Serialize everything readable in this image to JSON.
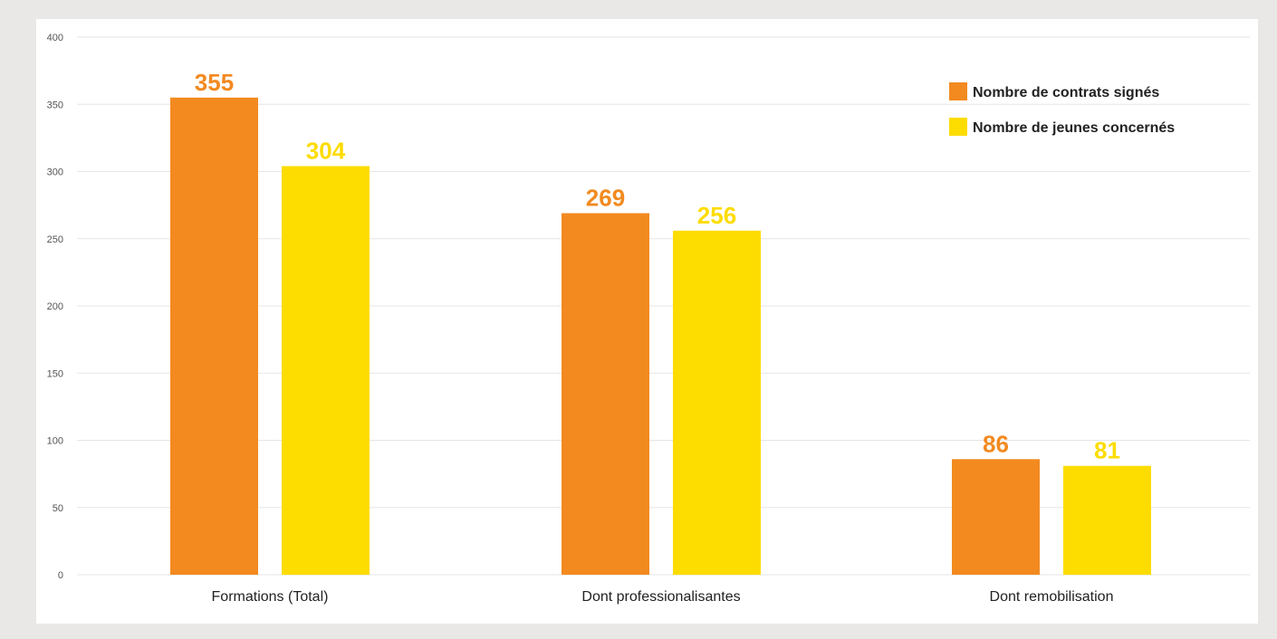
{
  "chart_data": {
    "type": "bar",
    "categories": [
      "Formations (Total)",
      "Dont professionalisantes",
      "Dont remobilisation"
    ],
    "series": [
      {
        "name": "Nombre de contrats signés",
        "color": "#f28a20",
        "values": [
          355,
          269,
          86
        ]
      },
      {
        "name": "Nombre de jeunes concernés",
        "color": "#fddc00",
        "values": [
          304,
          256,
          81
        ]
      }
    ],
    "ylim": [
      0,
      400
    ],
    "yticks": [
      "0",
      "50",
      "100",
      "150",
      "200",
      "250",
      "300",
      "350",
      "400"
    ],
    "grid": true,
    "legend_position": "top-right",
    "data_labels": true,
    "title": "",
    "xlabel": "",
    "ylabel": ""
  }
}
